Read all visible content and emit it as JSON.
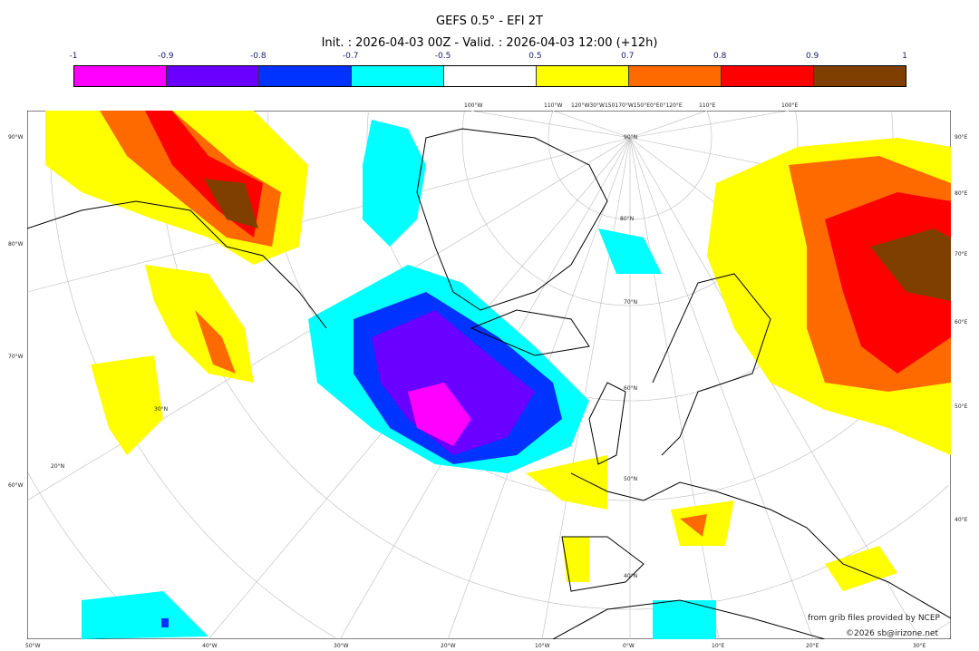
{
  "title": "GEFS 0.5° - EFI 2T",
  "subtitle": "Init. : 2026-04-03 00Z - Valid. : 2026-04-03 12:00 (+12h)",
  "colorbar": {
    "ticks": [
      "-1",
      "-0.9",
      "-0.8",
      "-0.7",
      "-0.5",
      "0.5",
      "0.7",
      "0.8",
      "0.9",
      "1"
    ],
    "colors": [
      "#ff00ff",
      "#6a00ff",
      "#0033ff",
      "#00ffff",
      "#ffffff",
      "#ffff00",
      "#ff6a00",
      "#ff0000",
      "#7f3f00"
    ]
  },
  "axes": {
    "left": [
      "90°W",
      "80°W",
      "70°W",
      "60°W"
    ],
    "right": [
      "90°E",
      "80°E",
      "70°E",
      "60°E",
      "50°E",
      "40°E"
    ],
    "bottom": [
      "50°W",
      "40°W",
      "30°W",
      "20°W",
      "10°W",
      "0°W",
      "10°E",
      "20°E",
      "30°E"
    ],
    "top": [
      "100°W",
      "110°W",
      "120°W30°W150170°W150°E0°E0°120°E",
      "110°E",
      "100°E"
    ],
    "inner": [
      "90°N",
      "80°N",
      "70°N",
      "60°N",
      "50°N",
      "40°N",
      "30°N",
      "20°N"
    ]
  },
  "credits": {
    "source": "from grib files provided by NCEP",
    "copyright": "©2026 sb@irizone.net"
  }
}
